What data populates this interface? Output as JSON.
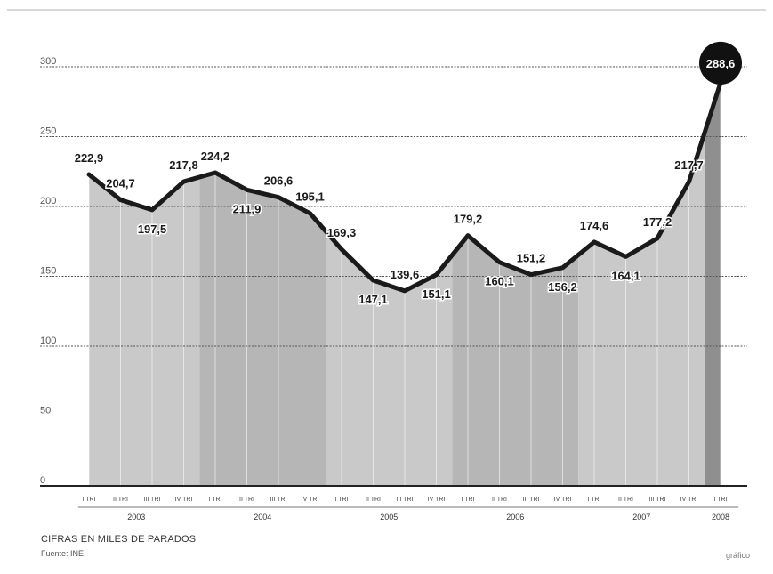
{
  "chart_data": {
    "type": "area",
    "y_ticks": [
      "0",
      "50",
      "100",
      "150",
      "200",
      "250",
      "300"
    ],
    "ylim": [
      0,
      300
    ],
    "grid": true,
    "points": [
      {
        "y": 222.9,
        "label": "222,9",
        "pos": "above"
      },
      {
        "y": 204.7,
        "label": "204,7",
        "pos": "above"
      },
      {
        "y": 197.5,
        "label": "197,5",
        "pos": "below"
      },
      {
        "y": 217.8,
        "label": "217,8",
        "pos": "above"
      },
      {
        "y": 224.2,
        "label": "224,2",
        "pos": "above"
      },
      {
        "y": 211.9,
        "label": "211,9",
        "pos": "below"
      },
      {
        "y": 206.6,
        "label": "206,6",
        "pos": "above"
      },
      {
        "y": 195.1,
        "label": "195,1",
        "pos": "above"
      },
      {
        "y": 169.3,
        "label": "169,3",
        "pos": "above"
      },
      {
        "y": 147.1,
        "label": "147,1",
        "pos": "below"
      },
      {
        "y": 139.6,
        "label": "139,6",
        "pos": "above"
      },
      {
        "y": 151.1,
        "label": "151,1",
        "pos": "below"
      },
      {
        "y": 179.2,
        "label": "179,2",
        "pos": "above"
      },
      {
        "y": 160.1,
        "label": "160,1",
        "pos": "below"
      },
      {
        "y": 151.2,
        "label": "151,2",
        "pos": "above"
      },
      {
        "y": 156.2,
        "label": "156,2",
        "pos": "below"
      },
      {
        "y": 174.6,
        "label": "174,6",
        "pos": "above"
      },
      {
        "y": 164.1,
        "label": "164,1",
        "pos": "below"
      },
      {
        "y": 177.2,
        "label": "177,2",
        "pos": "above"
      },
      {
        "y": 217.7,
        "label": "217,7",
        "pos": "above"
      },
      {
        "y": 288.6,
        "label": "288,6",
        "pos": "highlight"
      }
    ],
    "quarter_labels": [
      "I TRI",
      "II TRI",
      "III TRI",
      "IV TRI",
      "I TRI",
      "II TRI",
      "III TRI",
      "IV TRI",
      "I TRI",
      "II TRI",
      "III TRI",
      "IV TRI",
      "I TRI",
      "II TRI",
      "III TRI",
      "IV TRI",
      "I TRI",
      "II TRI",
      "III TRI",
      "IV TRI",
      "I TRI"
    ],
    "years": [
      {
        "label": "2003",
        "start": 0,
        "end": 3
      },
      {
        "label": "2004",
        "start": 4,
        "end": 7
      },
      {
        "label": "2005",
        "start": 8,
        "end": 11
      },
      {
        "label": "2006",
        "start": 12,
        "end": 15
      },
      {
        "label": "2007",
        "start": 16,
        "end": 19
      },
      {
        "label": "2008",
        "start": 20,
        "end": 20
      }
    ],
    "colors": {
      "line": "#1a1a1a",
      "grid": "#555555",
      "highlight": "#111111",
      "band_a": "#c9c9c9",
      "band_b": "#b6b6b6",
      "band_last": "#8f8f8f"
    }
  },
  "caption": "CIFRAS EN MILES DE PARADOS",
  "source": "Fuente: INE",
  "credit": "gráfico"
}
